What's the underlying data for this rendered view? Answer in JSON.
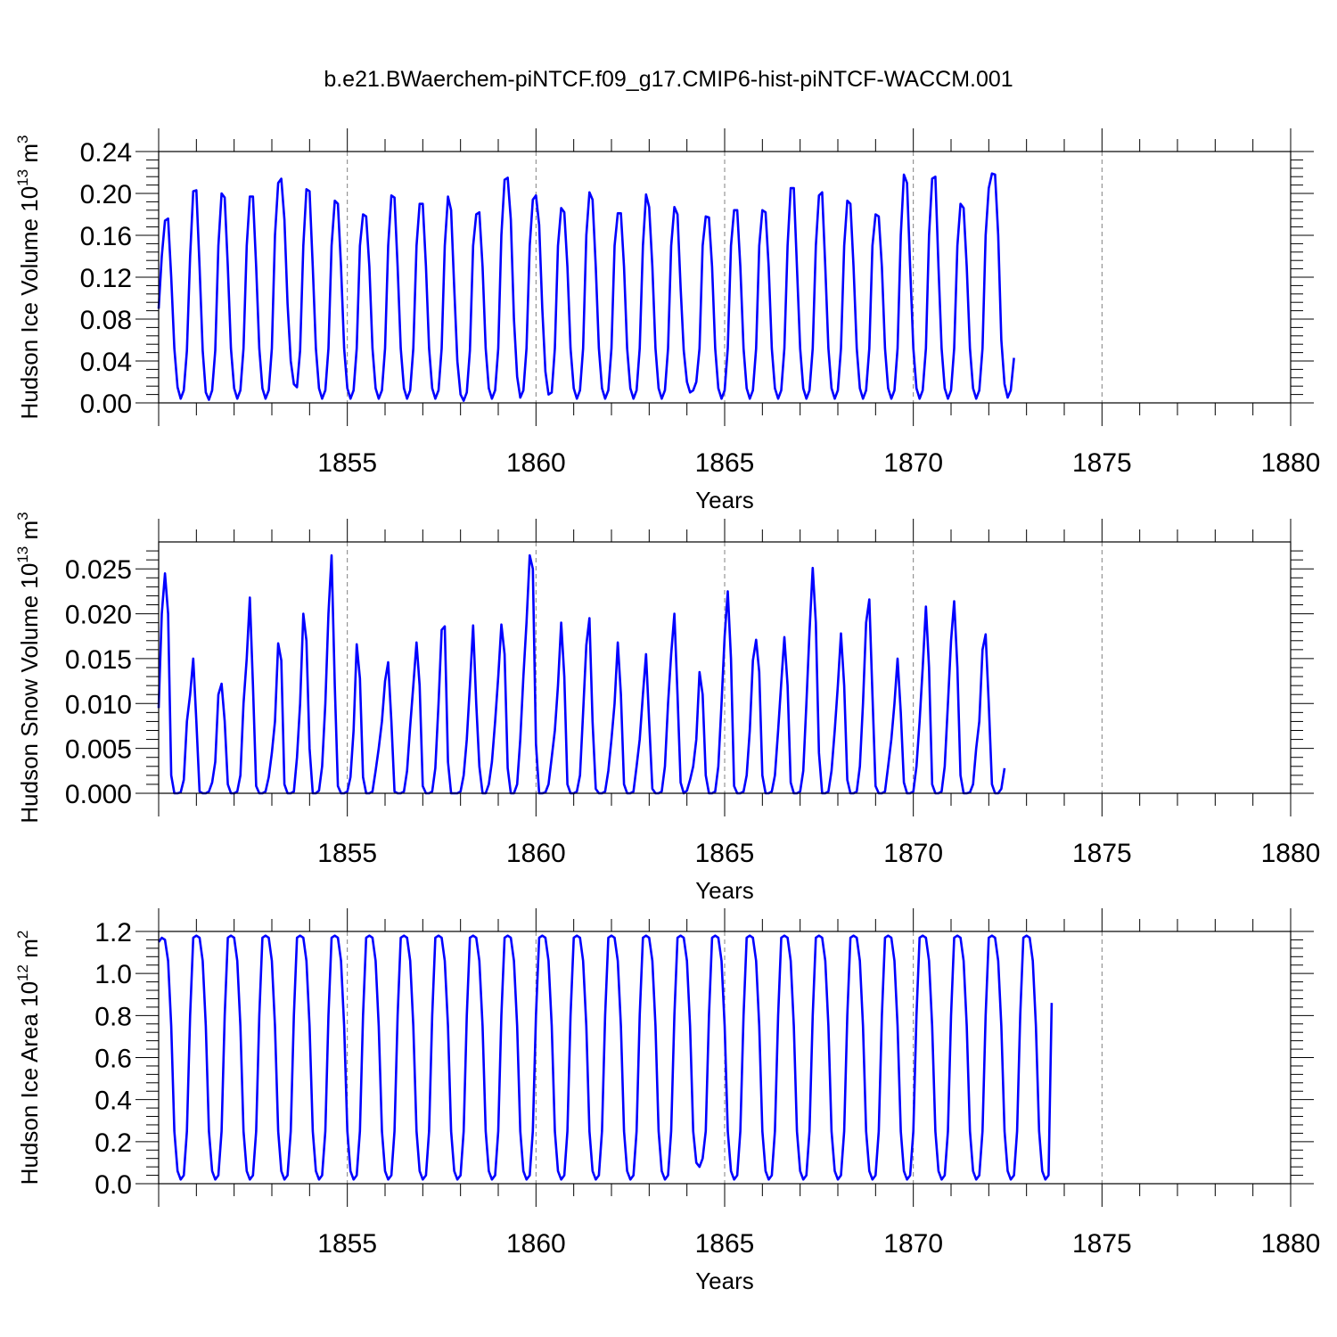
{
  "figure_title": "b.e21.BWaerchem-piNTCF.f09_g17.CMIP6-hist-piNTCF-WACCM.001",
  "colors": {
    "series": "#0000ff",
    "axis": "#000000",
    "grid": "#808080"
  },
  "chart_data": [
    {
      "type": "line",
      "title": "",
      "ylabel": "Hudson Ice Volume 10",
      "ylabel_exp": "13",
      "ylabel_unit": " m",
      "ylabel_unit_exp": "3",
      "xlabel": "Years",
      "xlim": [
        1850.0,
        1880.0
      ],
      "ylim": [
        0.0,
        0.24
      ],
      "yticks": [
        0.0,
        0.04,
        0.08,
        0.12,
        0.16,
        0.2,
        0.24
      ],
      "ytick_labels": [
        "0.00",
        "0.04",
        "0.08",
        "0.12",
        "0.16",
        "0.20",
        "0.24"
      ],
      "xticks": [
        1855,
        1860,
        1865,
        1870,
        1875,
        1880
      ],
      "xtick_labels": [
        "1855",
        "1860",
        "1865",
        "1870",
        "1875",
        "1880"
      ],
      "grid": "vertical dashed at 5-year intervals",
      "series": [
        {
          "name": "Hudson Ice Volume",
          "x_start": 1850.0,
          "x_step": 0.0833333,
          "values": [
            0.09,
            0.14,
            0.174,
            0.176,
            0.12,
            0.052,
            0.015,
            0.004,
            0.012,
            0.05,
            0.14,
            0.202,
            0.203,
            0.13,
            0.05,
            0.01,
            0.003,
            0.012,
            0.05,
            0.15,
            0.2,
            0.196,
            0.13,
            0.052,
            0.014,
            0.004,
            0.012,
            0.052,
            0.15,
            0.197,
            0.197,
            0.13,
            0.052,
            0.014,
            0.004,
            0.012,
            0.052,
            0.16,
            0.21,
            0.214,
            0.175,
            0.095,
            0.04,
            0.018,
            0.015,
            0.05,
            0.15,
            0.204,
            0.202,
            0.13,
            0.052,
            0.014,
            0.004,
            0.012,
            0.052,
            0.15,
            0.193,
            0.19,
            0.13,
            0.052,
            0.014,
            0.004,
            0.012,
            0.052,
            0.15,
            0.18,
            0.178,
            0.13,
            0.052,
            0.014,
            0.004,
            0.012,
            0.052,
            0.15,
            0.198,
            0.196,
            0.13,
            0.052,
            0.014,
            0.004,
            0.012,
            0.052,
            0.15,
            0.19,
            0.19,
            0.13,
            0.052,
            0.014,
            0.004,
            0.012,
            0.052,
            0.15,
            0.197,
            0.184,
            0.11,
            0.04,
            0.008,
            0.002,
            0.01,
            0.05,
            0.15,
            0.18,
            0.182,
            0.13,
            0.052,
            0.014,
            0.004,
            0.012,
            0.052,
            0.16,
            0.213,
            0.215,
            0.175,
            0.08,
            0.025,
            0.005,
            0.012,
            0.052,
            0.15,
            0.194,
            0.198,
            0.17,
            0.09,
            0.03,
            0.008,
            0.01,
            0.052,
            0.15,
            0.186,
            0.182,
            0.13,
            0.052,
            0.014,
            0.004,
            0.012,
            0.052,
            0.16,
            0.201,
            0.194,
            0.13,
            0.052,
            0.014,
            0.004,
            0.012,
            0.052,
            0.15,
            0.181,
            0.181,
            0.13,
            0.052,
            0.014,
            0.004,
            0.012,
            0.052,
            0.15,
            0.199,
            0.187,
            0.13,
            0.052,
            0.014,
            0.004,
            0.012,
            0.052,
            0.15,
            0.187,
            0.18,
            0.11,
            0.05,
            0.02,
            0.01,
            0.012,
            0.02,
            0.052,
            0.15,
            0.178,
            0.177,
            0.13,
            0.052,
            0.014,
            0.004,
            0.012,
            0.052,
            0.15,
            0.184,
            0.184,
            0.13,
            0.052,
            0.014,
            0.004,
            0.012,
            0.052,
            0.15,
            0.184,
            0.182,
            0.13,
            0.052,
            0.014,
            0.004,
            0.012,
            0.052,
            0.15,
            0.205,
            0.205,
            0.13,
            0.052,
            0.014,
            0.004,
            0.012,
            0.052,
            0.15,
            0.198,
            0.201,
            0.13,
            0.052,
            0.014,
            0.004,
            0.012,
            0.052,
            0.15,
            0.193,
            0.19,
            0.13,
            0.052,
            0.014,
            0.004,
            0.012,
            0.052,
            0.15,
            0.18,
            0.178,
            0.13,
            0.052,
            0.014,
            0.004,
            0.012,
            0.052,
            0.16,
            0.218,
            0.21,
            0.13,
            0.052,
            0.014,
            0.004,
            0.012,
            0.052,
            0.16,
            0.214,
            0.216,
            0.13,
            0.052,
            0.014,
            0.004,
            0.012,
            0.052,
            0.15,
            0.19,
            0.186,
            0.13,
            0.052,
            0.014,
            0.004,
            0.012,
            0.052,
            0.16,
            0.205,
            0.219,
            0.218,
            0.16,
            0.06,
            0.018,
            0.005,
            0.012,
            0.043
          ]
        }
      ]
    },
    {
      "type": "line",
      "title": "",
      "ylabel": "Hudson Snow Volume 10",
      "ylabel_exp": "13",
      "ylabel_unit": " m",
      "ylabel_unit_exp": "3",
      "xlabel": "Years",
      "xlim": [
        1850.0,
        1880.0
      ],
      "ylim": [
        0.0,
        0.028
      ],
      "yticks": [
        0.0,
        0.005,
        0.01,
        0.015,
        0.02,
        0.025
      ],
      "ytick_labels": [
        "0.000",
        "0.005",
        "0.010",
        "0.015",
        "0.020",
        "0.025"
      ],
      "xticks": [
        1855,
        1860,
        1865,
        1870,
        1875,
        1880
      ],
      "xtick_labels": [
        "1855",
        "1860",
        "1865",
        "1870",
        "1875",
        "1880"
      ],
      "grid": "vertical dashed at 5-year intervals",
      "series": [
        {
          "name": "Hudson Snow Volume",
          "x_start": 1850.0,
          "x_step": 0.0833333,
          "values": [
            0.0095,
            0.02,
            0.0245,
            0.02,
            0.002,
            0.0,
            0.0,
            0.0001,
            0.0015,
            0.008,
            0.011,
            0.015,
            0.008,
            0.0002,
            0.0,
            0.0,
            0.0002,
            0.0012,
            0.0035,
            0.011,
            0.0122,
            0.008,
            0.001,
            0.0,
            0.0,
            0.0002,
            0.002,
            0.01,
            0.015,
            0.0218,
            0.012,
            0.0008,
            0.0,
            0.0,
            0.0002,
            0.0018,
            0.0045,
            0.008,
            0.0167,
            0.0148,
            0.001,
            0.0,
            0.0,
            0.0002,
            0.004,
            0.01,
            0.02,
            0.017,
            0.005,
            0.0,
            0.0,
            0.0003,
            0.003,
            0.01,
            0.02,
            0.0265,
            0.012,
            0.0008,
            0.0,
            0.0,
            0.0002,
            0.0018,
            0.007,
            0.0166,
            0.0128,
            0.0018,
            0.0,
            0.0,
            0.0002,
            0.0025,
            0.005,
            0.008,
            0.0125,
            0.0146,
            0.008,
            0.0002,
            0.0,
            0.0,
            0.0002,
            0.0025,
            0.0075,
            0.012,
            0.0168,
            0.012,
            0.0008,
            0.0,
            0.0,
            0.0002,
            0.0028,
            0.01,
            0.0182,
            0.0186,
            0.0035,
            0.0,
            0.0,
            0.0,
            0.0002,
            0.002,
            0.006,
            0.012,
            0.0187,
            0.01,
            0.003,
            0.0,
            0.0,
            0.001,
            0.0035,
            0.008,
            0.013,
            0.0188,
            0.0155,
            0.0028,
            0.0,
            0.0,
            0.001,
            0.006,
            0.013,
            0.019,
            0.0265,
            0.025,
            0.0055,
            0.0,
            0.0,
            0.0001,
            0.001,
            0.004,
            0.007,
            0.012,
            0.019,
            0.013,
            0.001,
            0.0,
            0.0,
            0.0002,
            0.002,
            0.009,
            0.0165,
            0.0195,
            0.008,
            0.0005,
            0.0,
            0.0,
            0.0002,
            0.0025,
            0.006,
            0.01,
            0.0168,
            0.011,
            0.001,
            0.0,
            0.0,
            0.0002,
            0.003,
            0.006,
            0.011,
            0.0155,
            0.008,
            0.0005,
            0.0,
            0.0,
            0.0002,
            0.003,
            0.01,
            0.0155,
            0.02,
            0.011,
            0.0012,
            0.0,
            0.0003,
            0.0015,
            0.003,
            0.006,
            0.0135,
            0.011,
            0.002,
            0.0,
            0.0,
            0.0002,
            0.003,
            0.01,
            0.0175,
            0.0225,
            0.015,
            0.0008,
            0.0,
            0.0,
            0.0002,
            0.002,
            0.007,
            0.0148,
            0.0171,
            0.0135,
            0.002,
            0.0,
            0.0,
            0.0002,
            0.002,
            0.007,
            0.0123,
            0.0174,
            0.012,
            0.0012,
            0.0,
            0.0,
            0.0002,
            0.0025,
            0.01,
            0.018,
            0.0251,
            0.019,
            0.0045,
            0.0,
            0.0,
            0.0002,
            0.0025,
            0.007,
            0.012,
            0.0178,
            0.012,
            0.0015,
            0.0,
            0.0,
            0.0002,
            0.003,
            0.01,
            0.019,
            0.0216,
            0.011,
            0.0008,
            0.0,
            0.0,
            0.0002,
            0.003,
            0.006,
            0.01,
            0.015,
            0.009,
            0.0012,
            0.0,
            0.0,
            0.0002,
            0.003,
            0.008,
            0.014,
            0.0208,
            0.014,
            0.001,
            0.0,
            0.0,
            0.0002,
            0.003,
            0.01,
            0.017,
            0.0214,
            0.014,
            0.002,
            0.0,
            0.0,
            0.0001,
            0.001,
            0.005,
            0.008,
            0.016,
            0.0177,
            0.01,
            0.001,
            0.0,
            0.0,
            0.0005,
            0.0028
          ]
        }
      ]
    },
    {
      "type": "line",
      "title": "",
      "ylabel": "Hudson Ice Area 10",
      "ylabel_exp": "12",
      "ylabel_unit": " m",
      "ylabel_unit_exp": "2",
      "xlabel": "Years",
      "xlim": [
        1850.0,
        1880.0
      ],
      "ylim": [
        0.0,
        1.2
      ],
      "yticks": [
        0.0,
        0.2,
        0.4,
        0.6,
        0.8,
        1.0,
        1.2
      ],
      "ytick_labels": [
        "0.0",
        "0.2",
        "0.4",
        "0.6",
        "0.8",
        "1.0",
        "1.2"
      ],
      "xticks": [
        1855,
        1860,
        1865,
        1870,
        1875,
        1880
      ],
      "xtick_labels": [
        "1855",
        "1860",
        "1865",
        "1870",
        "1875",
        "1880"
      ],
      "grid": "vertical dashed at 5-year intervals",
      "series": [
        {
          "name": "Hudson Ice Area",
          "x_start": 1850.0,
          "x_step": 0.0833333,
          "values": [
            1.15,
            1.17,
            1.16,
            1.06,
            0.75,
            0.25,
            0.06,
            0.02,
            0.04,
            0.25,
            0.8,
            1.17,
            1.18,
            1.17,
            1.06,
            0.75,
            0.25,
            0.06,
            0.02,
            0.04,
            0.25,
            0.8,
            1.17,
            1.18,
            1.17,
            1.06,
            0.75,
            0.25,
            0.06,
            0.02,
            0.04,
            0.25,
            0.8,
            1.17,
            1.18,
            1.17,
            1.06,
            0.75,
            0.25,
            0.06,
            0.02,
            0.04,
            0.25,
            0.8,
            1.17,
            1.18,
            1.17,
            1.06,
            0.75,
            0.25,
            0.06,
            0.02,
            0.04,
            0.25,
            0.8,
            1.17,
            1.18,
            1.17,
            1.06,
            0.75,
            0.25,
            0.06,
            0.02,
            0.04,
            0.25,
            0.8,
            1.17,
            1.18,
            1.17,
            1.06,
            0.75,
            0.25,
            0.06,
            0.02,
            0.04,
            0.25,
            0.8,
            1.17,
            1.18,
            1.17,
            1.06,
            0.75,
            0.25,
            0.06,
            0.02,
            0.04,
            0.25,
            0.8,
            1.17,
            1.18,
            1.17,
            1.06,
            0.75,
            0.25,
            0.06,
            0.02,
            0.04,
            0.25,
            0.8,
            1.17,
            1.18,
            1.17,
            1.06,
            0.75,
            0.25,
            0.06,
            0.02,
            0.04,
            0.25,
            0.8,
            1.17,
            1.18,
            1.17,
            1.06,
            0.75,
            0.25,
            0.06,
            0.02,
            0.04,
            0.25,
            0.8,
            1.17,
            1.18,
            1.17,
            1.06,
            0.75,
            0.25,
            0.06,
            0.02,
            0.04,
            0.25,
            0.8,
            1.17,
            1.18,
            1.17,
            1.06,
            0.75,
            0.25,
            0.06,
            0.02,
            0.04,
            0.25,
            0.8,
            1.17,
            1.18,
            1.17,
            1.06,
            0.75,
            0.25,
            0.06,
            0.02,
            0.04,
            0.25,
            0.8,
            1.17,
            1.18,
            1.17,
            1.06,
            0.75,
            0.25,
            0.06,
            0.02,
            0.04,
            0.25,
            0.8,
            1.17,
            1.18,
            1.17,
            1.06,
            0.75,
            0.25,
            0.1,
            0.08,
            0.12,
            0.25,
            0.8,
            1.17,
            1.18,
            1.17,
            1.06,
            0.75,
            0.25,
            0.06,
            0.02,
            0.04,
            0.25,
            0.8,
            1.17,
            1.18,
            1.17,
            1.06,
            0.75,
            0.25,
            0.06,
            0.02,
            0.04,
            0.25,
            0.8,
            1.17,
            1.18,
            1.17,
            1.06,
            0.75,
            0.25,
            0.06,
            0.02,
            0.04,
            0.25,
            0.8,
            1.17,
            1.18,
            1.17,
            1.06,
            0.75,
            0.25,
            0.06,
            0.02,
            0.04,
            0.25,
            0.8,
            1.17,
            1.18,
            1.17,
            1.06,
            0.75,
            0.25,
            0.06,
            0.02,
            0.04,
            0.25,
            0.8,
            1.17,
            1.18,
            1.17,
            1.06,
            0.75,
            0.25,
            0.06,
            0.02,
            0.04,
            0.25,
            0.8,
            1.17,
            1.18,
            1.17,
            1.06,
            0.75,
            0.25,
            0.06,
            0.02,
            0.04,
            0.25,
            0.8,
            1.17,
            1.18,
            1.17,
            1.06,
            0.75,
            0.25,
            0.06,
            0.02,
            0.04,
            0.25,
            0.8,
            1.17,
            1.18,
            1.17,
            1.06,
            0.75,
            0.25,
            0.06,
            0.02,
            0.04,
            0.25,
            0.8,
            1.17,
            1.18,
            1.17,
            1.06,
            0.75,
            0.25,
            0.06,
            0.02,
            0.04,
            0.86
          ]
        }
      ]
    }
  ]
}
